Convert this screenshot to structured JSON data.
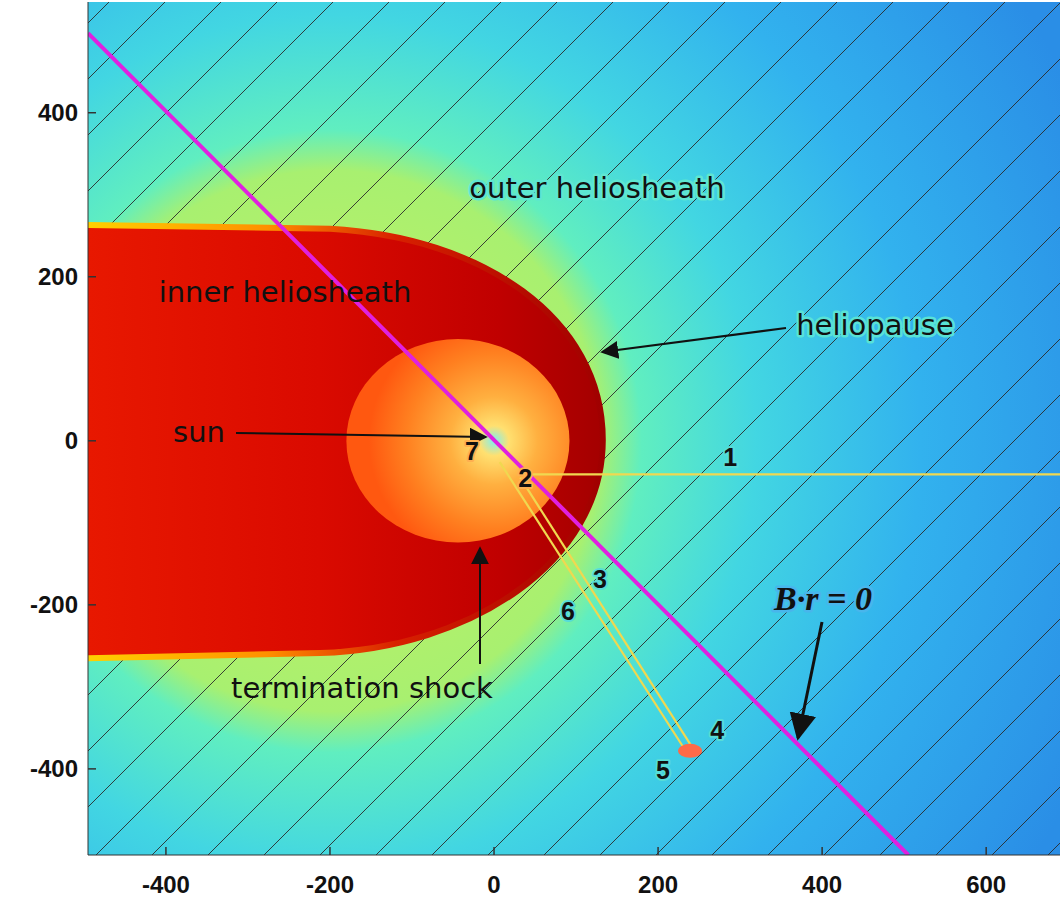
{
  "chart_data": {
    "type": "map",
    "xlim": [
      -495,
      690
    ],
    "ylim": [
      -505,
      535
    ],
    "xticks": [
      -400,
      -200,
      0,
      200,
      400,
      600
    ],
    "yticks": [
      -400,
      -200,
      0,
      200,
      400
    ],
    "annotations": [
      "outer heliosheath",
      "inner heliosheath",
      "sun",
      "heliopause",
      "termination shock",
      "B·r = 0"
    ],
    "path_labels": [
      "1",
      "2",
      "3",
      "4",
      "5",
      "6",
      "7"
    ]
  }
}
